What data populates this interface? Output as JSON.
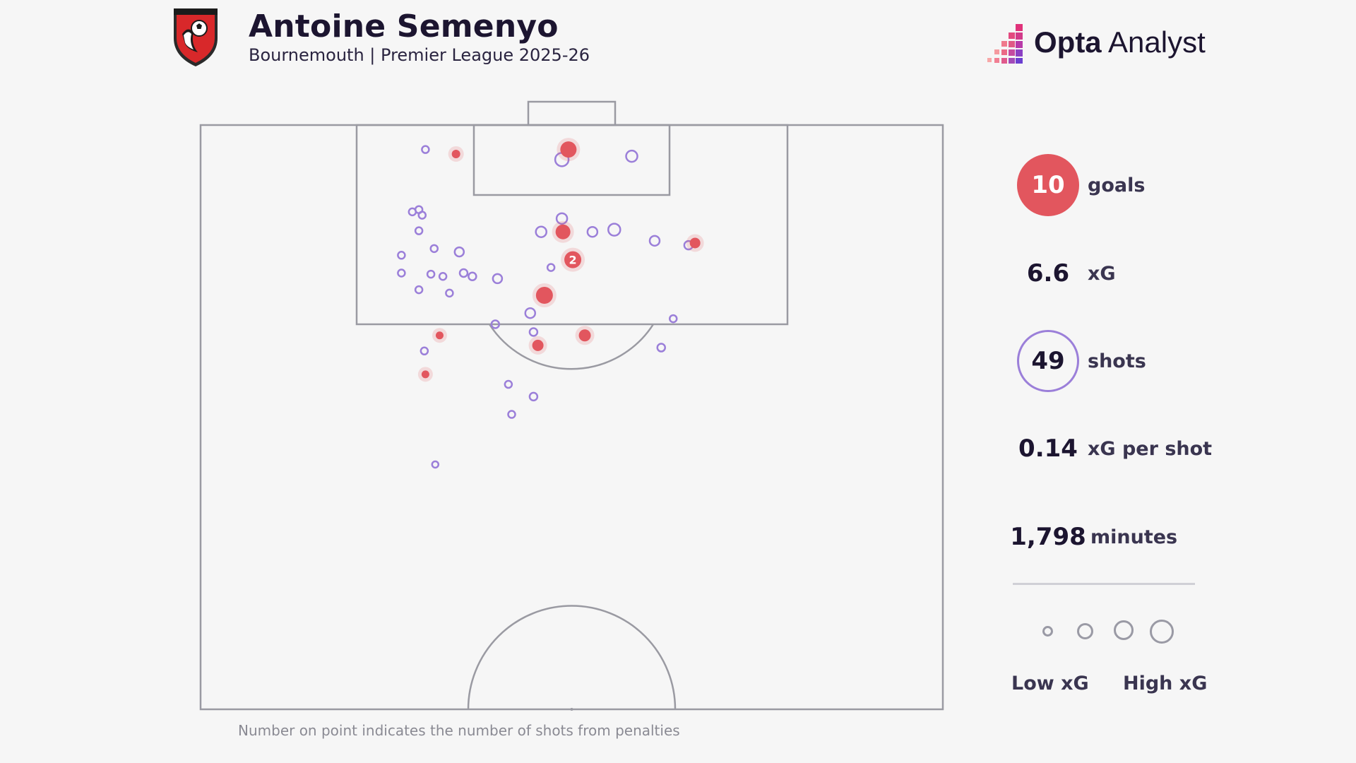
{
  "header": {
    "title": "Antoine Semenyo",
    "subtitle": "Bournemouth | Premier League 2025-26",
    "crest_icon": "afc-bournemouth-crest",
    "brand_bold": "Opta",
    "brand_light": "Analyst"
  },
  "stats": {
    "goals_value": "10",
    "goals_label": "goals",
    "xg_value": "6.6",
    "xg_label": "xG",
    "shots_value": "49",
    "shots_label": "shots",
    "xg_per_shot_value": "0.14",
    "xg_per_shot_label": "xG per shot",
    "minutes_value": "1,798",
    "minutes_label": "minutes"
  },
  "legend": {
    "low_label": "Low xG",
    "high_label": "High xG"
  },
  "footnote": "Number on point indicates the number of shots from penalties",
  "colors": {
    "goal": "#e2565e",
    "shot": "#9b7fd9",
    "pitch_line": "#9a9aa2",
    "background": "#f6f6f6"
  },
  "chart_data": {
    "type": "scatter",
    "description_units": "x = metres from left touchline (0-68), y = metres from goal line (0-52.5), size = relative xG 0-1",
    "xlim": [
      0,
      68
    ],
    "ylim": [
      0,
      52.5
    ],
    "goals": [
      {
        "x": 23.4,
        "y": 2.6,
        "xg": 0.2
      },
      {
        "x": 33.7,
        "y": 2.2,
        "xg": 0.75
      },
      {
        "x": 33.2,
        "y": 9.6,
        "xg": 0.65
      },
      {
        "x": 34.1,
        "y": 12.1,
        "xg": 0.8,
        "penalties": "2"
      },
      {
        "x": 31.5,
        "y": 15.3,
        "xg": 0.8
      },
      {
        "x": 45.3,
        "y": 10.6,
        "xg": 0.35
      },
      {
        "x": 21.9,
        "y": 18.9,
        "xg": 0.15
      },
      {
        "x": 35.2,
        "y": 18.9,
        "xg": 0.45
      },
      {
        "x": 30.9,
        "y": 19.8,
        "xg": 0.4
      },
      {
        "x": 20.6,
        "y": 22.4,
        "xg": 0.15
      }
    ],
    "shots": [
      {
        "x": 20.6,
        "y": 2.2,
        "xg": 0.1
      },
      {
        "x": 33.1,
        "y": 3.1,
        "xg": 0.55
      },
      {
        "x": 39.5,
        "y": 2.8,
        "xg": 0.4
      },
      {
        "x": 19.4,
        "y": 7.8,
        "xg": 0.1
      },
      {
        "x": 20.0,
        "y": 7.6,
        "xg": 0.1
      },
      {
        "x": 20.3,
        "y": 8.1,
        "xg": 0.1
      },
      {
        "x": 20.0,
        "y": 9.5,
        "xg": 0.1
      },
      {
        "x": 33.1,
        "y": 8.4,
        "xg": 0.35
      },
      {
        "x": 31.2,
        "y": 9.6,
        "xg": 0.35
      },
      {
        "x": 35.9,
        "y": 9.6,
        "xg": 0.3
      },
      {
        "x": 37.9,
        "y": 9.4,
        "xg": 0.45
      },
      {
        "x": 41.6,
        "y": 10.4,
        "xg": 0.3
      },
      {
        "x": 44.7,
        "y": 10.8,
        "xg": 0.2
      },
      {
        "x": 18.4,
        "y": 11.7,
        "xg": 0.1
      },
      {
        "x": 21.4,
        "y": 11.1,
        "xg": 0.1
      },
      {
        "x": 23.7,
        "y": 11.4,
        "xg": 0.25
      },
      {
        "x": 18.4,
        "y": 13.3,
        "xg": 0.1
      },
      {
        "x": 21.1,
        "y": 13.4,
        "xg": 0.1
      },
      {
        "x": 22.2,
        "y": 13.6,
        "xg": 0.1
      },
      {
        "x": 24.1,
        "y": 13.3,
        "xg": 0.15
      },
      {
        "x": 24.9,
        "y": 13.6,
        "xg": 0.15
      },
      {
        "x": 27.2,
        "y": 13.8,
        "xg": 0.25
      },
      {
        "x": 32.1,
        "y": 12.8,
        "xg": 0.1
      },
      {
        "x": 20.0,
        "y": 14.8,
        "xg": 0.1
      },
      {
        "x": 22.8,
        "y": 15.1,
        "xg": 0.1
      },
      {
        "x": 30.2,
        "y": 16.9,
        "xg": 0.3
      },
      {
        "x": 27.0,
        "y": 17.9,
        "xg": 0.15
      },
      {
        "x": 43.3,
        "y": 17.4,
        "xg": 0.1
      },
      {
        "x": 30.5,
        "y": 18.6,
        "xg": 0.15
      },
      {
        "x": 20.5,
        "y": 20.3,
        "xg": 0.1
      },
      {
        "x": 42.2,
        "y": 20.0,
        "xg": 0.15
      },
      {
        "x": 28.2,
        "y": 23.3,
        "xg": 0.1
      },
      {
        "x": 30.5,
        "y": 24.4,
        "xg": 0.15
      },
      {
        "x": 28.5,
        "y": 26.0,
        "xg": 0.1
      },
      {
        "x": 21.5,
        "y": 30.5,
        "xg": 0.05
      }
    ]
  }
}
